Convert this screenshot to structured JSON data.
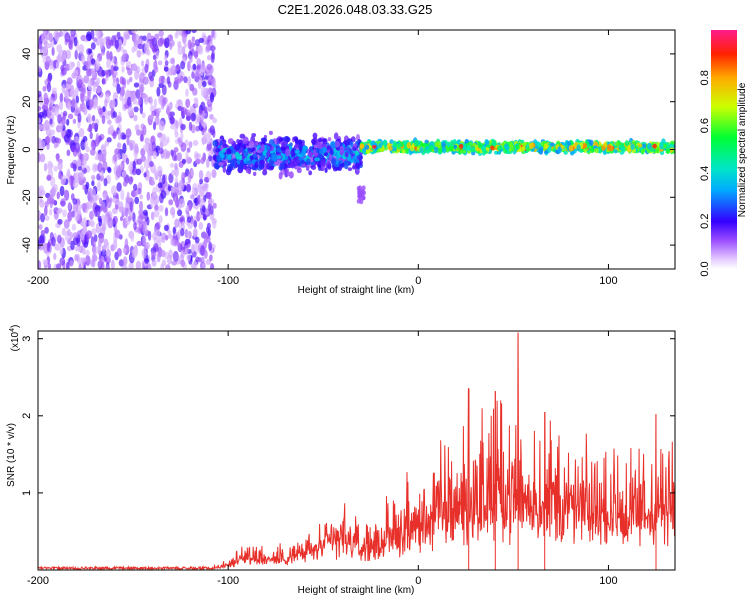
{
  "title": "C2E1.2026.048.03.33.G25",
  "colors": {
    "line": "#e8302a",
    "axis": "#000000",
    "background": "#ffffff"
  },
  "chart_data": [
    {
      "type": "heatmap",
      "name": "spectrogram",
      "xlabel": "Height of straight line (km)",
      "ylabel": "Frequency (Hz)",
      "xlim": [
        -200,
        135
      ],
      "ylim": [
        -50,
        50
      ],
      "x_ticks": [
        -200,
        -100,
        0,
        100
      ],
      "x_tick_labels": [
        "-200",
        "-100",
        "0",
        "100"
      ],
      "y_ticks": [
        -40,
        -20,
        0,
        20,
        40
      ],
      "y_tick_labels": [
        "-40",
        "-20",
        "0",
        "20",
        "40"
      ],
      "colorbar": {
        "label": "Normalized spectral amplitude",
        "range": [
          0,
          1
        ],
        "ticks": [
          0.0,
          0.2,
          0.4,
          0.6,
          0.8
        ],
        "tick_labels": [
          "0.0",
          "0.2",
          "0.4",
          "0.6",
          "0.8"
        ]
      },
      "regions": [
        {
          "x_range": [
            -200,
            -107
          ],
          "description": "broad noise",
          "freq_range": [
            -50,
            50
          ],
          "amplitude": [
            0.05,
            0.2
          ]
        },
        {
          "x_range": [
            -107,
            -30
          ],
          "description": "signal band",
          "freq_center": -2,
          "freq_halfwidth": 10,
          "amplitude": [
            0.1,
            0.45
          ]
        },
        {
          "x_range": [
            -30,
            135
          ],
          "description": "narrow tone",
          "freq_center": 1,
          "freq_halfwidth": 3,
          "amplitude": [
            0.3,
            1.0
          ]
        }
      ]
    },
    {
      "type": "line",
      "name": "snr",
      "xlabel": "Height of straight line (km)",
      "ylabel": "SNR (10 * v/v)",
      "y_scale_label": "(x10",
      "y_scale_exponent": "4",
      "y_scale_suffix": ")",
      "xlim": [
        -200,
        135
      ],
      "ylim": [
        0,
        3.1
      ],
      "x_ticks": [
        -200,
        -100,
        0,
        100
      ],
      "x_tick_labels": [
        "-200",
        "-100",
        "0",
        "100"
      ],
      "y_ticks": [
        1,
        2,
        3
      ],
      "y_tick_labels": [
        "1",
        "2",
        "3"
      ],
      "envelope": {
        "x": [
          -200,
          -110,
          -100,
          -90,
          -80,
          -70,
          -60,
          -50,
          -40,
          -30,
          -20,
          -10,
          0,
          10,
          20,
          30,
          40,
          50,
          60,
          70,
          80,
          90,
          100,
          110,
          120,
          130,
          135
        ],
        "y": [
          0.02,
          0.03,
          0.15,
          0.35,
          0.3,
          0.32,
          0.45,
          0.6,
          0.85,
          0.6,
          0.7,
          1.0,
          1.2,
          1.5,
          1.7,
          1.9,
          2.0,
          2.1,
          1.8,
          1.9,
          1.6,
          1.5,
          1.6,
          1.4,
          1.6,
          1.7,
          1.5
        ]
      },
      "peaks": [
        {
          "x": 26.5,
          "y": 2.35
        },
        {
          "x": 40.5,
          "y": 2.32
        },
        {
          "x": 52.5,
          "y": 3.08
        },
        {
          "x": 66.5,
          "y": 2.05
        },
        {
          "x": 125,
          "y": 2.02
        }
      ]
    }
  ]
}
